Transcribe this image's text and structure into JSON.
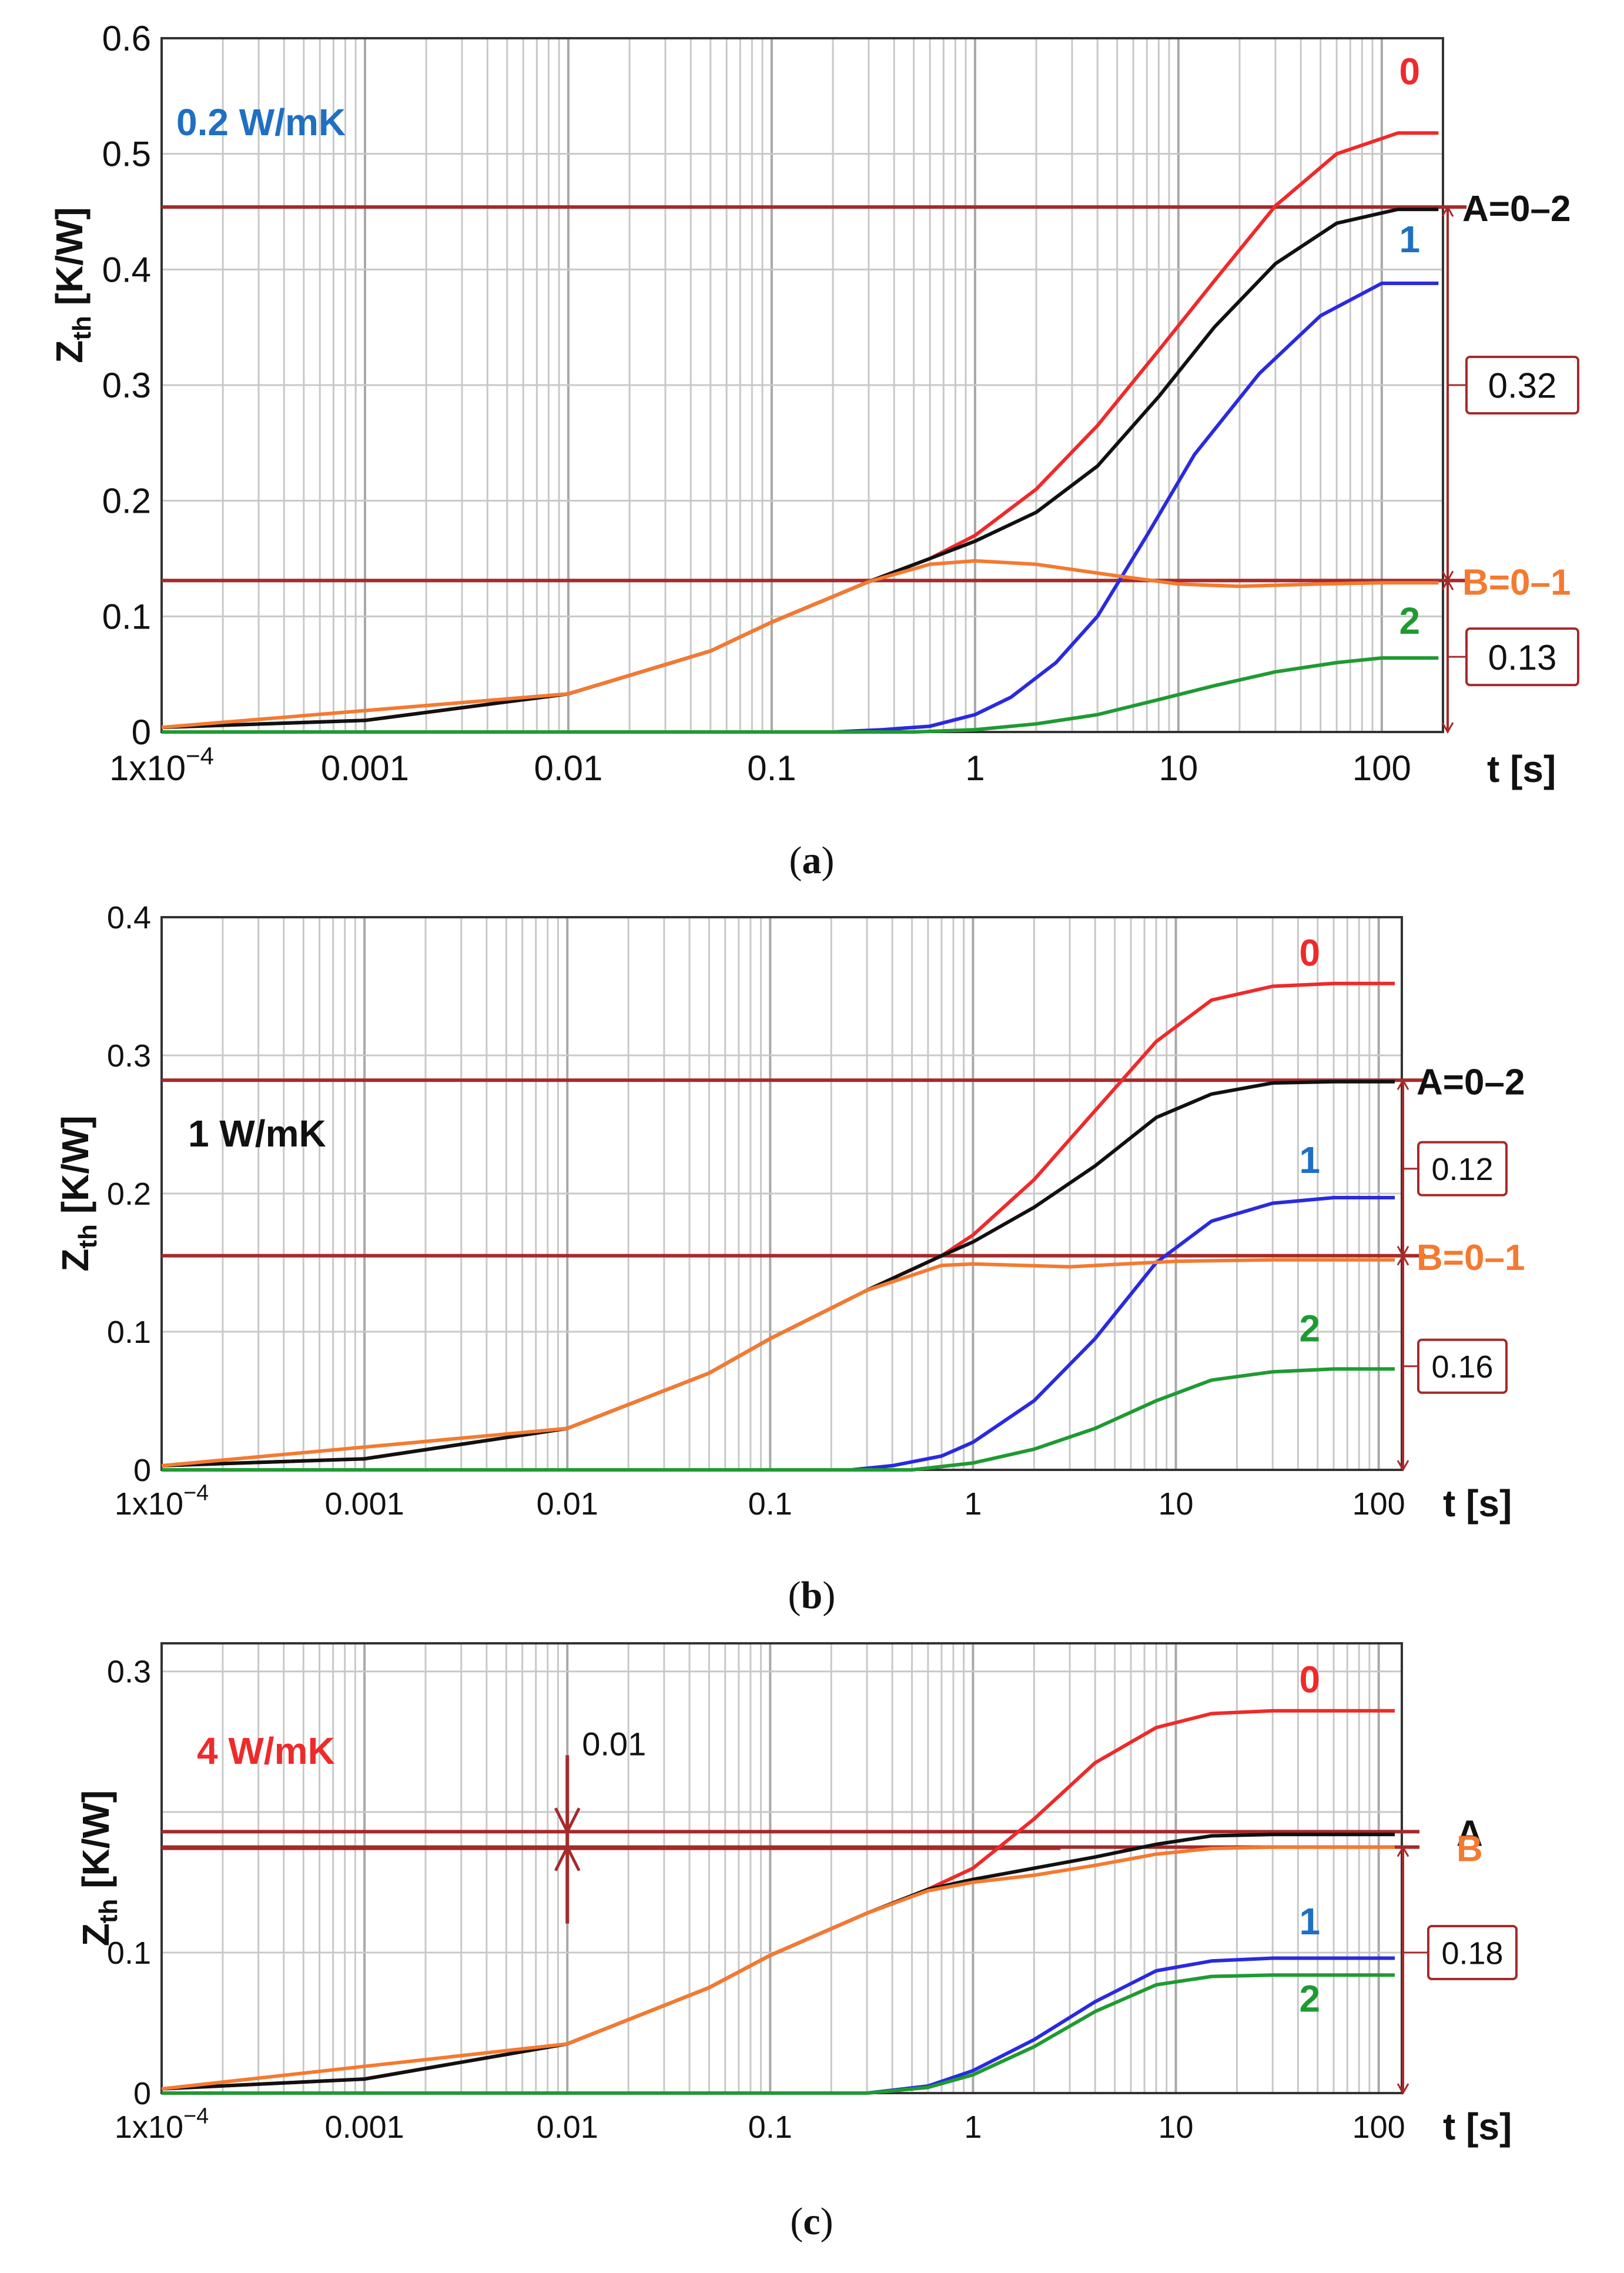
{
  "chart_data": [
    {
      "id": "a",
      "type": "line",
      "caption": "(a)",
      "caption_letter": "a",
      "material_label": "0.2 W/mK",
      "material_color": "#1f6fc2",
      "xscale": "log",
      "xlim": [
        0.0001,
        200
      ],
      "ylim": [
        0,
        0.6
      ],
      "x_ticks": [
        {
          "value": 0.0001,
          "label": "1x10",
          "sup": "−4"
        },
        {
          "value": 0.001,
          "label": "0.001"
        },
        {
          "value": 0.01,
          "label": "0.01"
        },
        {
          "value": 0.1,
          "label": "0.1"
        },
        {
          "value": 1,
          "label": "1"
        },
        {
          "value": 10,
          "label": "10"
        },
        {
          "value": 100,
          "label": "100"
        }
      ],
      "y_ticks": [
        {
          "value": 0,
          "label": "0"
        },
        {
          "value": 0.1,
          "label": "0.1"
        },
        {
          "value": 0.2,
          "label": "0.2"
        },
        {
          "value": 0.3,
          "label": "0.3"
        },
        {
          "value": 0.4,
          "label": "0.4"
        },
        {
          "value": 0.5,
          "label": "0.5"
        },
        {
          "value": 0.6,
          "label": "0.6"
        }
      ],
      "ylabel": "Z",
      "ylabel_sub": "th",
      "ylabel_unit": "[K/W]",
      "xlabel": "t [s]",
      "series": [
        {
          "name": "0",
          "color": "#ee2a2a",
          "x": [
            0.0001,
            0.001,
            0.01,
            0.05,
            0.1,
            0.3,
            0.6,
            1,
            2,
            4,
            8,
            15,
            30,
            60,
            120,
            190
          ],
          "y": [
            0.004,
            0.01,
            0.033,
            0.07,
            0.095,
            0.13,
            0.15,
            0.17,
            0.21,
            0.265,
            0.33,
            0.39,
            0.455,
            0.5,
            0.518,
            0.518
          ]
        },
        {
          "name": "A=0–2",
          "color": "#111111",
          "x": [
            0.0001,
            0.001,
            0.01,
            0.05,
            0.1,
            0.3,
            0.6,
            1,
            2,
            4,
            8,
            15,
            30,
            60,
            120,
            190
          ],
          "y": [
            0.004,
            0.01,
            0.033,
            0.07,
            0.095,
            0.13,
            0.15,
            0.165,
            0.19,
            0.23,
            0.29,
            0.35,
            0.405,
            0.44,
            0.452,
            0.452
          ]
        },
        {
          "name": "1",
          "color": "#2a2adf",
          "x": [
            0.0001,
            0.2,
            0.35,
            0.6,
            1,
            1.5,
            2.5,
            4,
            7,
            12,
            25,
            50,
            100,
            190
          ],
          "y": [
            0,
            0,
            0.002,
            0.005,
            0.015,
            0.03,
            0.06,
            0.1,
            0.17,
            0.24,
            0.31,
            0.36,
            0.388,
            0.388
          ]
        },
        {
          "name": "B=0–1",
          "color": "#f47a30",
          "x": [
            0.0001,
            0.01,
            0.05,
            0.1,
            0.3,
            0.6,
            1,
            2,
            5,
            10,
            20,
            50,
            100,
            190
          ],
          "y": [
            0.004,
            0.033,
            0.07,
            0.095,
            0.13,
            0.145,
            0.148,
            0.145,
            0.135,
            0.128,
            0.126,
            0.128,
            0.129,
            0.129
          ]
        },
        {
          "name": "2",
          "color": "#1f9a32",
          "x": [
            0.0001,
            0.5,
            1,
            2,
            4,
            8,
            15,
            30,
            60,
            100,
            190
          ],
          "y": [
            0,
            0,
            0.002,
            0.007,
            0.015,
            0.028,
            0.04,
            0.052,
            0.06,
            0.064,
            0.064
          ]
        }
      ],
      "series_labels": [
        {
          "text": "0",
          "color": "#ee2a2a",
          "x": 120,
          "y": 0.56
        },
        {
          "text": "1",
          "color": "#1f6fc2",
          "x": 120,
          "y": 0.415
        },
        {
          "text": "2",
          "color": "#1f9a32",
          "x": 120,
          "y": 0.085
        }
      ],
      "level_lines": [
        {
          "name": "A",
          "value": 0.454,
          "label": "A=0–2",
          "color": "#111111"
        },
        {
          "name": "B",
          "value": 0.131,
          "label": "B=0–1",
          "color": "#f47a30"
        }
      ],
      "brackets": [
        {
          "from": 0.131,
          "to": 0.454,
          "label": "0.32"
        },
        {
          "from": 0,
          "to": 0.131,
          "label": "0.13"
        }
      ],
      "annotation": null
    },
    {
      "id": "b",
      "type": "line",
      "caption": "(b)",
      "caption_letter": "b",
      "material_label": "1 W/mK",
      "material_color": "#111111",
      "xscale": "log",
      "xlim": [
        0.0001,
        130
      ],
      "ylim": [
        0,
        0.4
      ],
      "x_ticks": [
        {
          "value": 0.0001,
          "label": "1x10",
          "sup": "−4"
        },
        {
          "value": 0.001,
          "label": "0.001"
        },
        {
          "value": 0.01,
          "label": "0.01"
        },
        {
          "value": 0.1,
          "label": "0.1"
        },
        {
          "value": 1,
          "label": "1"
        },
        {
          "value": 10,
          "label": "10"
        },
        {
          "value": 100,
          "label": "100"
        }
      ],
      "y_ticks": [
        {
          "value": 0,
          "label": "0"
        },
        {
          "value": 0.1,
          "label": "0.1"
        },
        {
          "value": 0.2,
          "label": "0.2"
        },
        {
          "value": 0.3,
          "label": "0.3"
        },
        {
          "value": 0.4,
          "label": "0.4"
        }
      ],
      "ylabel": "Z",
      "ylabel_sub": "th",
      "ylabel_unit": "[K/W]",
      "xlabel": "t [s]",
      "series": [
        {
          "name": "0",
          "color": "#ee2a2a",
          "x": [
            0.0001,
            0.001,
            0.01,
            0.05,
            0.1,
            0.3,
            0.7,
            1,
            2,
            4,
            8,
            15,
            30,
            60,
            120
          ],
          "y": [
            0.003,
            0.008,
            0.03,
            0.07,
            0.095,
            0.13,
            0.155,
            0.17,
            0.21,
            0.26,
            0.31,
            0.34,
            0.35,
            0.352,
            0.352
          ]
        },
        {
          "name": "A=0–2",
          "color": "#111111",
          "x": [
            0.0001,
            0.001,
            0.01,
            0.05,
            0.1,
            0.3,
            0.7,
            1,
            2,
            4,
            8,
            15,
            30,
            60,
            120
          ],
          "y": [
            0.003,
            0.008,
            0.03,
            0.07,
            0.095,
            0.13,
            0.155,
            0.165,
            0.19,
            0.22,
            0.255,
            0.272,
            0.28,
            0.281,
            0.281
          ]
        },
        {
          "name": "1",
          "color": "#2a2adf",
          "x": [
            0.0001,
            0.25,
            0.4,
            0.7,
            1,
            2,
            4,
            8,
            15,
            30,
            60,
            120
          ],
          "y": [
            0,
            0,
            0.003,
            0.01,
            0.02,
            0.05,
            0.095,
            0.15,
            0.18,
            0.193,
            0.197,
            0.197
          ]
        },
        {
          "name": "B=0–1",
          "color": "#f47a30",
          "x": [
            0.0001,
            0.01,
            0.05,
            0.1,
            0.3,
            0.7,
            1,
            3,
            10,
            30,
            120
          ],
          "y": [
            0.003,
            0.03,
            0.07,
            0.095,
            0.13,
            0.148,
            0.149,
            0.147,
            0.151,
            0.152,
            0.152
          ]
        },
        {
          "name": "2",
          "color": "#1f9a32",
          "x": [
            0.0001,
            0.5,
            1,
            2,
            4,
            8,
            15,
            30,
            60,
            120
          ],
          "y": [
            0,
            0,
            0.005,
            0.015,
            0.03,
            0.05,
            0.065,
            0.071,
            0.073,
            0.073
          ]
        }
      ],
      "series_labels": [
        {
          "text": "0",
          "color": "#ee2a2a",
          "x": 40,
          "y": 0.365
        },
        {
          "text": "1",
          "color": "#1f6fc2",
          "x": 40,
          "y": 0.215
        },
        {
          "text": "2",
          "color": "#1f9a32",
          "x": 40,
          "y": 0.093
        }
      ],
      "level_lines": [
        {
          "name": "A",
          "value": 0.282,
          "label": "A=0–2",
          "color": "#111111"
        },
        {
          "name": "B",
          "value": 0.155,
          "label": "B=0–1",
          "color": "#f47a30"
        }
      ],
      "brackets": [
        {
          "from": 0.155,
          "to": 0.282,
          "label": "0.12"
        },
        {
          "from": 0,
          "to": 0.155,
          "label": "0.16"
        }
      ],
      "annotation": null
    },
    {
      "id": "c",
      "type": "line",
      "caption": "(c)",
      "caption_letter": "c",
      "material_label": "4 W/mK",
      "material_color": "#ee2a2a",
      "xscale": "log",
      "xlim": [
        0.0001,
        130
      ],
      "ylim": [
        0,
        0.32
      ],
      "x_ticks": [
        {
          "value": 0.0001,
          "label": "1x10",
          "sup": "−4"
        },
        {
          "value": 0.001,
          "label": "0.001"
        },
        {
          "value": 0.01,
          "label": "0.01"
        },
        {
          "value": 0.1,
          "label": "0.1"
        },
        {
          "value": 1,
          "label": "1"
        },
        {
          "value": 10,
          "label": "10"
        },
        {
          "value": 100,
          "label": "100"
        }
      ],
      "y_ticks": [
        {
          "value": 0,
          "label": "0"
        },
        {
          "value": 0.1,
          "label": "0.1"
        },
        {
          "value": 0.2,
          "label": ""
        },
        {
          "value": 0.3,
          "label": "0.3"
        }
      ],
      "ylabel": "Z",
      "ylabel_sub": "th",
      "ylabel_unit": "[K/W]",
      "xlabel": "t [s]",
      "series": [
        {
          "name": "0",
          "color": "#ee2a2a",
          "x": [
            0.0001,
            0.001,
            0.01,
            0.05,
            0.1,
            0.3,
            0.6,
            1,
            2,
            4,
            8,
            15,
            30,
            60,
            120
          ],
          "y": [
            0.003,
            0.01,
            0.035,
            0.075,
            0.098,
            0.128,
            0.145,
            0.16,
            0.195,
            0.235,
            0.26,
            0.27,
            0.272,
            0.272,
            0.272
          ]
        },
        {
          "name": "A",
          "color": "#111111",
          "x": [
            0.0001,
            0.001,
            0.01,
            0.05,
            0.1,
            0.3,
            0.6,
            1,
            2,
            4,
            8,
            15,
            30,
            120
          ],
          "y": [
            0.003,
            0.01,
            0.035,
            0.075,
            0.098,
            0.128,
            0.145,
            0.152,
            0.16,
            0.168,
            0.177,
            0.183,
            0.184,
            0.184
          ]
        },
        {
          "name": "B",
          "color": "#f47a30",
          "x": [
            0.0001,
            0.01,
            0.05,
            0.1,
            0.3,
            0.6,
            1,
            2,
            4,
            8,
            15,
            30,
            120
          ],
          "y": [
            0.003,
            0.035,
            0.075,
            0.098,
            0.128,
            0.144,
            0.15,
            0.155,
            0.162,
            0.17,
            0.174,
            0.175,
            0.175
          ]
        },
        {
          "name": "1",
          "color": "#2a2adf",
          "x": [
            0.0001,
            0.3,
            0.6,
            1,
            2,
            4,
            8,
            15,
            30,
            60,
            120
          ],
          "y": [
            0,
            0,
            0.005,
            0.016,
            0.038,
            0.065,
            0.087,
            0.094,
            0.096,
            0.096,
            0.096
          ]
        },
        {
          "name": "2",
          "color": "#1f9a32",
          "x": [
            0.0001,
            0.3,
            0.6,
            1,
            2,
            4,
            8,
            15,
            30,
            60,
            120
          ],
          "y": [
            0,
            0,
            0.004,
            0.013,
            0.033,
            0.058,
            0.077,
            0.083,
            0.084,
            0.084,
            0.084
          ]
        }
      ],
      "series_labels": [
        {
          "text": "0",
          "color": "#ee2a2a",
          "x": 40,
          "y": 0.285
        },
        {
          "text": "1",
          "color": "#1f6fc2",
          "x": 40,
          "y": 0.113
        },
        {
          "text": "2",
          "color": "#1f9a32",
          "x": 40,
          "y": 0.058
        }
      ],
      "level_lines": [
        {
          "name": "A",
          "value": 0.186,
          "label": "A",
          "color": "#111111"
        },
        {
          "name": "B",
          "value": 0.175,
          "label": "B",
          "color": "#f47a30"
        }
      ],
      "brackets": [
        {
          "from": 0,
          "to": 0.175,
          "label": "0.18"
        }
      ],
      "annotation": {
        "x": 0.01,
        "upper": 0.186,
        "lower": 0.175,
        "label": "0.01"
      }
    }
  ]
}
